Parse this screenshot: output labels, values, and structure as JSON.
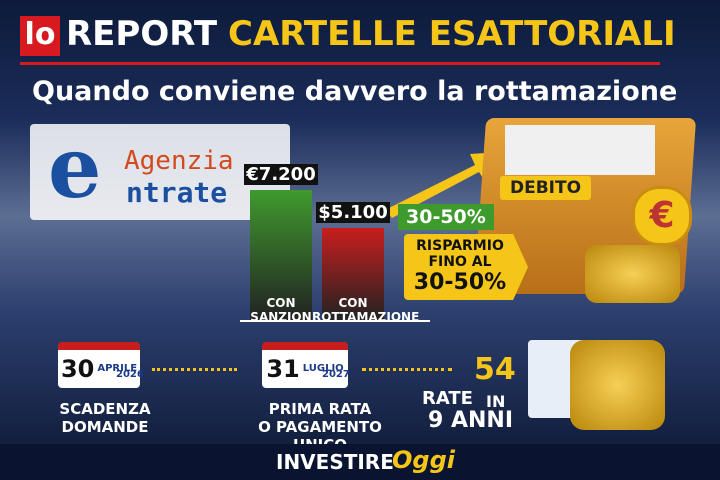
{
  "header": {
    "brand": "lo",
    "title_white": "REPORT",
    "title_yellow": "CARTELLE ESATTORIALI",
    "subtitle": "Quando conviene davvero la rottamazione"
  },
  "logo": {
    "letter": "e",
    "line1": "Agenzia",
    "line2": "ntrate"
  },
  "chart_data": {
    "type": "bar",
    "categories": [
      "CON\nSANZION",
      "CON\nROTTAMAZIONE"
    ],
    "values": [
      7200,
      5100
    ],
    "value_labels": [
      "€7.200",
      "$5.100"
    ],
    "colors": [
      "#3f9a2e",
      "#c81e1e"
    ]
  },
  "savings": {
    "arrow_label": "30-50%",
    "folder_label": "DEBITO",
    "folder_icon": "€",
    "tag_text": "RISPARMIO\nFINO AL",
    "tag_value": "30-50%"
  },
  "timeline": {
    "dates": [
      {
        "day": "30",
        "month": "APRILE",
        "year": "2026",
        "caption": "SCADENZA\nDOMANDE"
      },
      {
        "day": "31",
        "month": "LUGLIO",
        "year": "2027",
        "caption": "PRIMA RATA\nO PAGAMENTO UNICO"
      }
    ],
    "rate": {
      "number": "54",
      "word": "RATE",
      "prep": "IN",
      "term": "9 ANNI"
    }
  },
  "footer": {
    "brand1": "INVESTIRE",
    "brand2": "Oggi"
  }
}
